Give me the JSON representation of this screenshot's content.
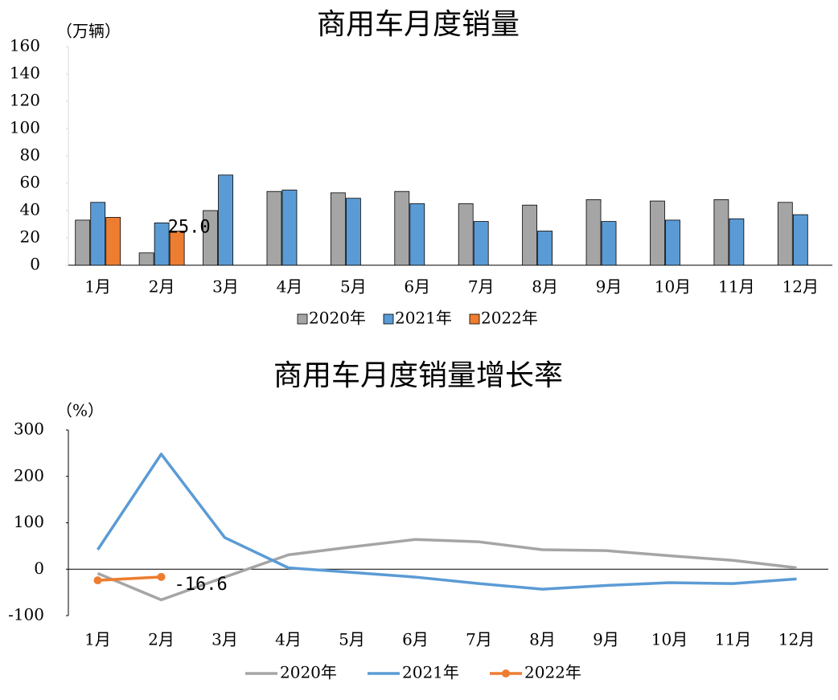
{
  "chart_data": [
    {
      "type": "bar",
      "title": "商用车月度销量",
      "y_label": "（万辆）",
      "categories": [
        "1月",
        "2月",
        "3月",
        "4月",
        "5月",
        "6月",
        "7月",
        "8月",
        "9月",
        "10月",
        "11月",
        "12月"
      ],
      "ylim": [
        0,
        160
      ],
      "yticks": [
        0,
        20,
        40,
        60,
        80,
        100,
        120,
        140,
        160
      ],
      "grid": false,
      "legend": "bottom",
      "series": [
        {
          "name": "2020年",
          "color": "#a5a5a5",
          "values": [
            33,
            9,
            40,
            54,
            53,
            54,
            45,
            44,
            48,
            47,
            48,
            46
          ]
        },
        {
          "name": "2021年",
          "color": "#5b9bd5",
          "values": [
            46,
            31,
            66,
            55,
            49,
            45,
            32,
            25,
            32,
            33,
            34,
            37
          ]
        },
        {
          "name": "2022年",
          "color": "#ed7d31",
          "values": [
            35,
            25,
            null,
            null,
            null,
            null,
            null,
            null,
            null,
            null,
            null,
            null
          ],
          "value_labels": [
            null,
            "25.0",
            null,
            null,
            null,
            null,
            null,
            null,
            null,
            null,
            null,
            null
          ]
        }
      ]
    },
    {
      "type": "line",
      "title": "商用车月度销量增长率",
      "y_label": "（%）",
      "categories": [
        "1月",
        "2月",
        "3月",
        "4月",
        "5月",
        "6月",
        "7月",
        "8月",
        "9月",
        "10月",
        "11月",
        "12月"
      ],
      "ylim": [
        -100,
        300
      ],
      "yticks": [
        -100,
        0,
        100,
        200,
        300
      ],
      "grid": false,
      "legend": "bottom",
      "series": [
        {
          "name": "2020年",
          "color": "#a5a5a5",
          "values": [
            -9,
            -66,
            -17,
            31,
            48,
            64,
            59,
            42,
            40,
            29,
            19,
            3
          ]
        },
        {
          "name": "2021年",
          "color": "#5b9bd5",
          "values": [
            42,
            248,
            68,
            3,
            -7,
            -17,
            -31,
            -43,
            -35,
            -29,
            -31,
            -21
          ]
        },
        {
          "name": "2022年",
          "color": "#ed7d31",
          "values": [
            -24,
            -16.6,
            null,
            null,
            null,
            null,
            null,
            null,
            null,
            null,
            null,
            null
          ],
          "value_labels": [
            null,
            "-16.6",
            null,
            null,
            null,
            null,
            null,
            null,
            null,
            null,
            null,
            null
          ],
          "markers": true
        }
      ]
    }
  ]
}
